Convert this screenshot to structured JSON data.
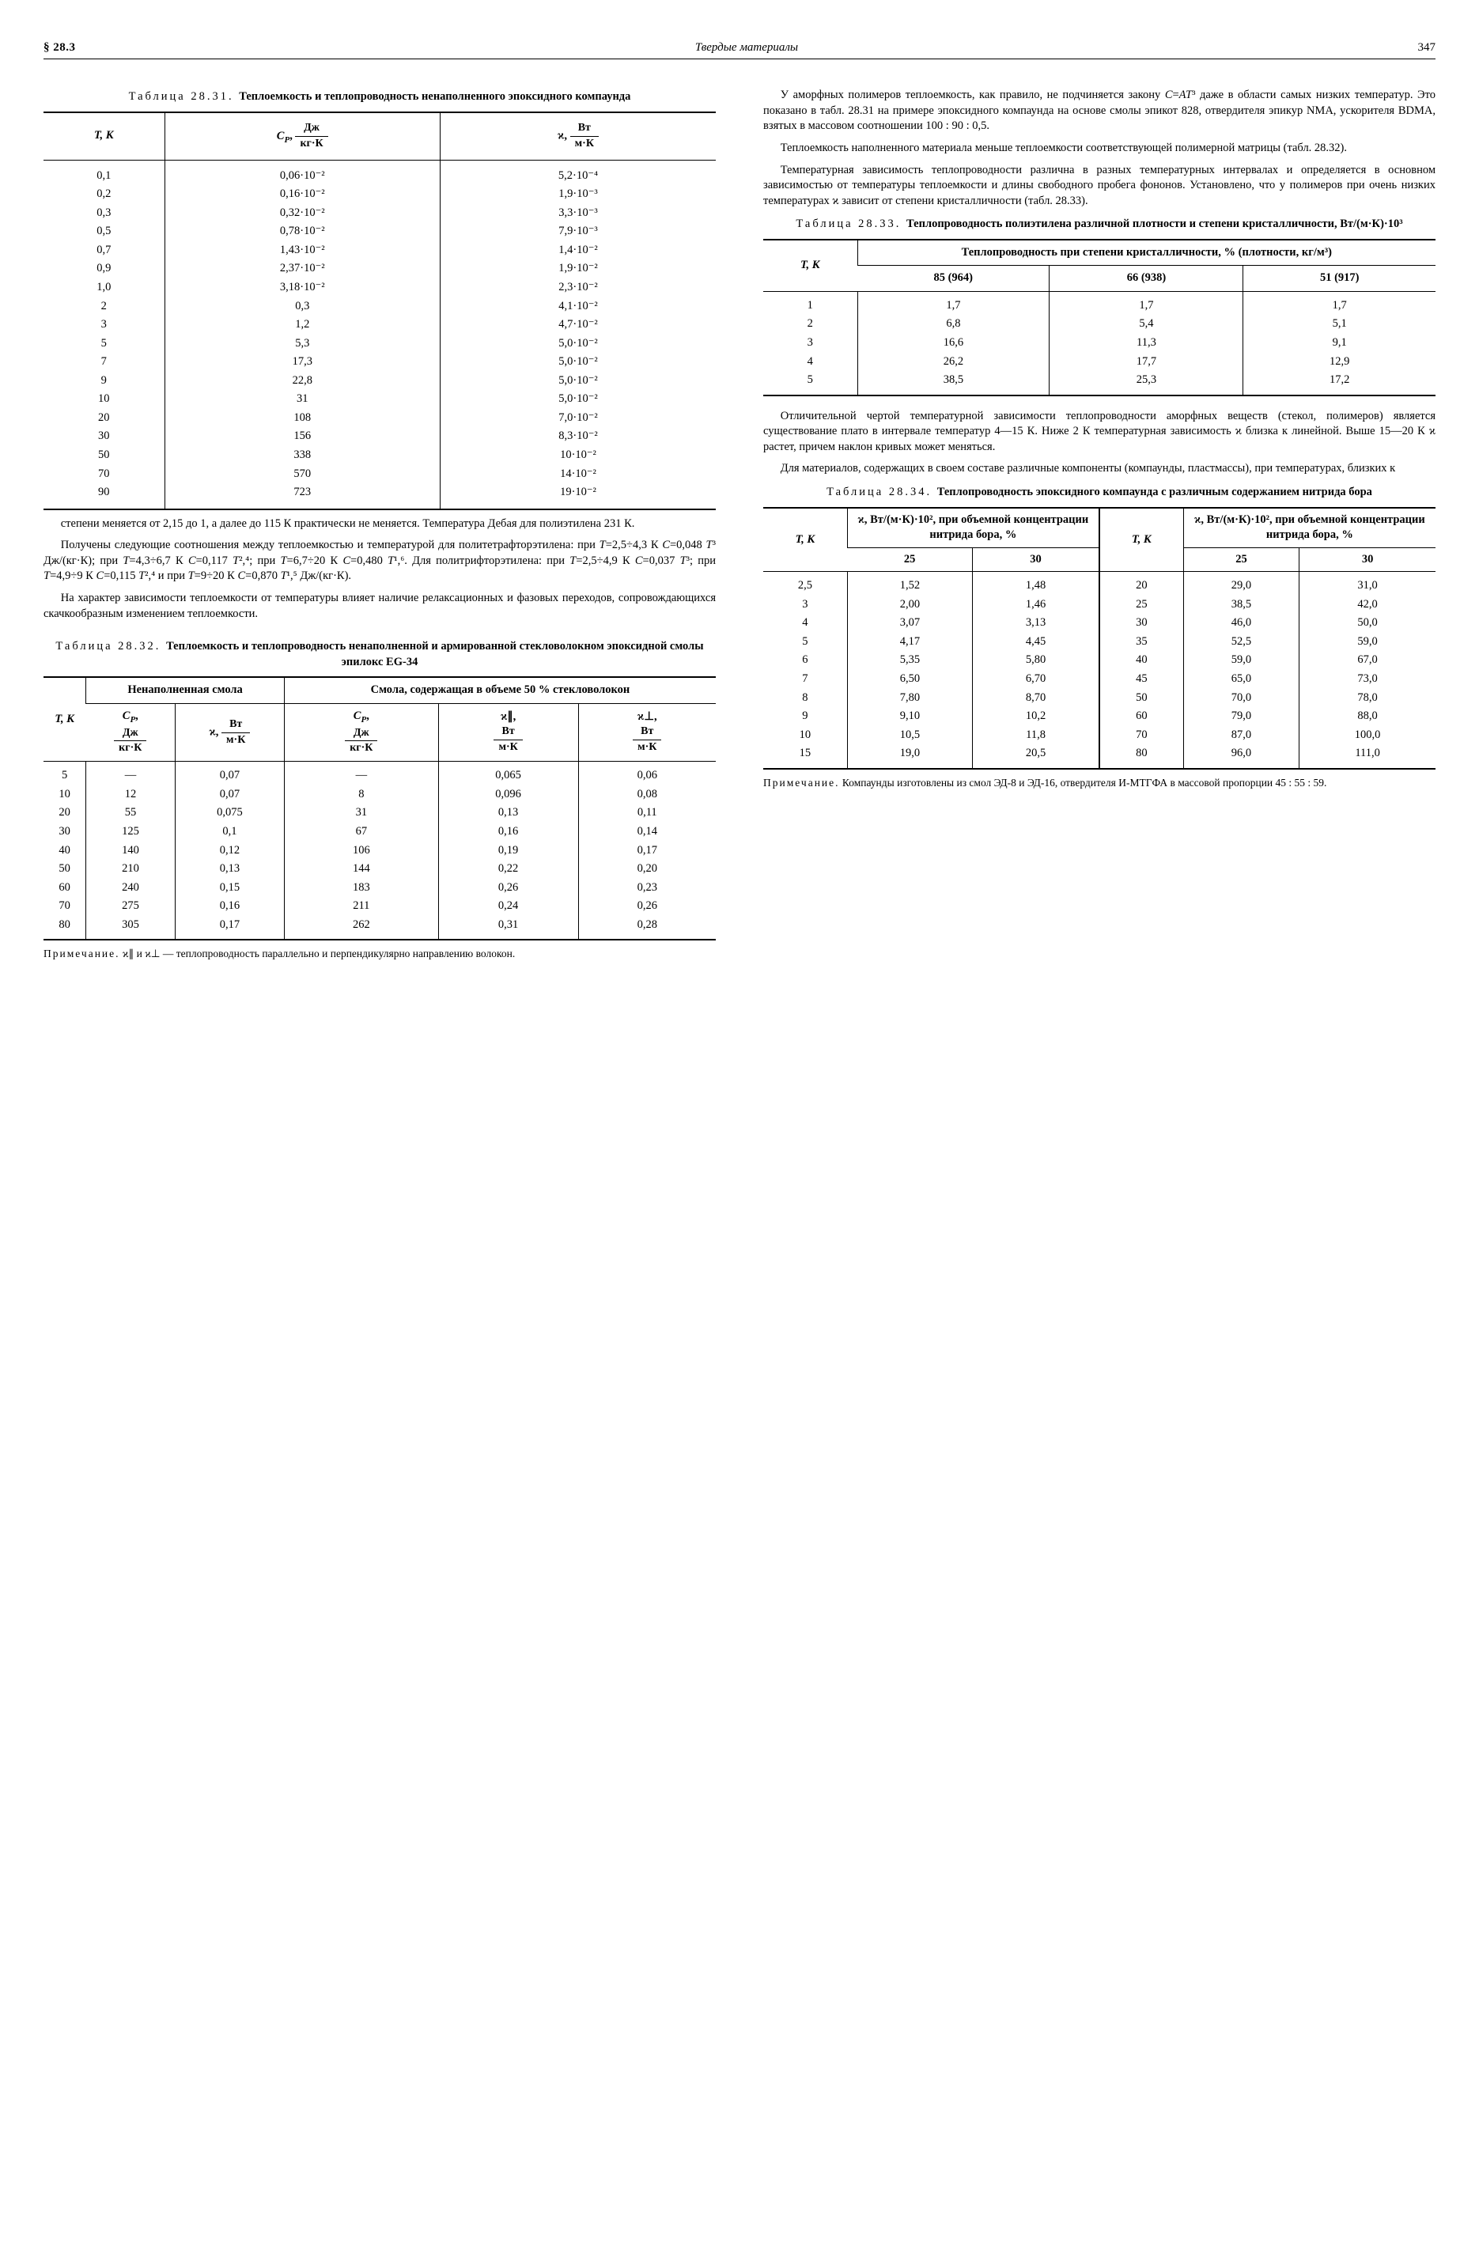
{
  "header": {
    "section": "§ 28.3",
    "chapter": "Твердые материалы",
    "page": "347"
  },
  "t31": {
    "caption_prefix": "Таблица 28.31. ",
    "caption_bold": "Теплоемкость и теплопроводность ненаполненного эпоксидного компаунда",
    "head": {
      "c1": "T, К",
      "c2a": "C",
      "c2b": "P",
      "c2c": ",",
      "c3a": "ϰ,",
      "frac_dz": "Дж",
      "frac_kgk": "кг·К",
      "frac_wt": "Вт",
      "frac_mk": "м·К"
    },
    "rows": [
      [
        "0,1",
        "0,06·10⁻²",
        "5,2·10⁻⁴"
      ],
      [
        "0,2",
        "0,16·10⁻²",
        "1,9·10⁻³"
      ],
      [
        "0,3",
        "0,32·10⁻²",
        "3,3·10⁻³"
      ],
      [
        "0,5",
        "0,78·10⁻²",
        "7,9·10⁻³"
      ],
      [
        "0,7",
        "1,43·10⁻²",
        "1,4·10⁻²"
      ],
      [
        "0,9",
        "2,37·10⁻²",
        "1,9·10⁻²"
      ],
      [
        "1,0",
        "3,18·10⁻²",
        "2,3·10⁻²"
      ],
      [
        "2",
        "0,3",
        "4,1·10⁻²"
      ],
      [
        "3",
        "1,2",
        "4,7·10⁻²"
      ],
      [
        "5",
        "5,3",
        "5,0·10⁻²"
      ],
      [
        "7",
        "17,3",
        "5,0·10⁻²"
      ],
      [
        "9",
        "22,8",
        "5,0·10⁻²"
      ],
      [
        "10",
        "31",
        "5,0·10⁻²"
      ],
      [
        "20",
        "108",
        "7,0·10⁻²"
      ],
      [
        "30",
        "156",
        "8,3·10⁻²"
      ],
      [
        "50",
        "338",
        "10·10⁻²"
      ],
      [
        "70",
        "570",
        "14·10⁻²"
      ],
      [
        "90",
        "723",
        "19·10⁻²"
      ]
    ]
  },
  "left_p1": "степени меняется от 2,15 до 1, а далее до 115 К практически не меняется. Температура Дебая для полиэтилена 231 К.",
  "left_p2_html": "Получены следующие соотношения между теплоемкостью и температурой для политетрафторэтилена: при <i>T</i>=2,5÷4,3 К <i>C</i>=0,048 <i>T</i>³ Дж/(кг·К); при <i>T</i>=4,3÷6,7 К <i>C</i>=0,117 <i>T</i>²,⁴; при <i>T</i>=6,7÷20 К <i>C</i>=0,480 <i>T</i>¹,⁶. Для политрифторэтилена: при <i>T</i>=2,5÷4,9 К <i>C</i>=0,037 <i>T</i>³; при <i>T</i>=4,9÷9 К <i>C</i>=0,115 <i>T</i>²,⁴ и при <i>T</i>=9÷20 К <i>C</i>=0,870 <i>T</i>¹,⁵ Дж/(кг·К).",
  "left_p3": "На характер зависимости теплоемкости от температуры влияет наличие релаксационных и фазовых переходов, сопровождающихся скачкообразным изменением теплоемкости.",
  "t32": {
    "caption_prefix": "Таблица 28.32. ",
    "caption_bold": "Теплоемкость и теплопроводность ненаполненной и армированной стекловолокном эпоксидной смолы эпилокс EG-34",
    "grp1": "Ненаполненная смола",
    "grp2": "Смола, содержащая в объеме 50 % стекловолокон",
    "hT": "T, К",
    "cp_label": "C_P,",
    "cp_unit_num": "Дж",
    "cp_unit_den": "кг·К",
    "k_label": "ϰ,",
    "k_unit_num": "Вт",
    "k_unit_den": "м·К",
    "kpar_label": "ϰ∥,",
    "kperp_label": "ϰ⊥,",
    "rows": [
      [
        "5",
        "—",
        "0,07",
        "—",
        "0,065",
        "0,06"
      ],
      [
        "10",
        "12",
        "0,07",
        "8",
        "0,096",
        "0,08"
      ],
      [
        "20",
        "55",
        "0,075",
        "31",
        "0,13",
        "0,11"
      ],
      [
        "30",
        "125",
        "0,1",
        "67",
        "0,16",
        "0,14"
      ],
      [
        "40",
        "140",
        "0,12",
        "106",
        "0,19",
        "0,17"
      ],
      [
        "50",
        "210",
        "0,13",
        "144",
        "0,22",
        "0,20"
      ],
      [
        "60",
        "240",
        "0,15",
        "183",
        "0,26",
        "0,23"
      ],
      [
        "70",
        "275",
        "0,16",
        "211",
        "0,24",
        "0,26"
      ],
      [
        "80",
        "305",
        "0,17",
        "262",
        "0,31",
        "0,28"
      ]
    ],
    "note_sp": "Примечание.",
    "note_rest": " ϰ∥ и ϰ⊥ — теплопроводность параллельно и перпендикулярно направлению волокон."
  },
  "right_p1_html": "У аморфных полимеров теплоемкость, как правило, не подчиняется закону <i>C</i>=<i>AT</i>³ даже в области самых низких температур. Это показано в табл. 28.31 на примере эпоксидного компаунда на основе смолы эпикот 828, отвердителя эпикур NMA, ускорителя BDMA, взятых в массовом соотношении 100 : 90 : 0,5.",
  "right_p2": "Теплоемкость наполненного материала меньше теплоемкости соответствующей полимерной матрицы (табл. 28.32).",
  "right_p3": "Температурная зависимость теплопроводности различна в разных температурных интервалах и определяется в основном зависимостью от температуры теплоемкости и длины свободного пробега фононов. Установлено, что у полимеров при очень низких температурах ϰ зависит от степени кристалличности (табл. 28.33).",
  "t33": {
    "caption_prefix": "Таблица 28.33. ",
    "caption_bold": "Теплопроводность полиэтилена различной плотности и степени кристалличности, Вт/(м·К)·10³",
    "hT": "T, К",
    "grp": "Теплопроводность при степени кристалличности, % (плотности, кг/м³)",
    "sub": [
      "85 (964)",
      "66 (938)",
      "51 (917)"
    ],
    "rows": [
      [
        "1",
        "1,7",
        "1,7",
        "1,7"
      ],
      [
        "2",
        "6,8",
        "5,4",
        "5,1"
      ],
      [
        "3",
        "16,6",
        "11,3",
        "9,1"
      ],
      [
        "4",
        "26,2",
        "17,7",
        "12,9"
      ],
      [
        "5",
        "38,5",
        "25,3",
        "17,2"
      ]
    ]
  },
  "right_p4": "Отличительной чертой температурной зависимости теплопроводности аморфных веществ (стекол, полимеров) является существование плато в интервале температур 4—15 К. Ниже 2 К температурная зависимость ϰ близка к линейной. Выше 15—20 К ϰ растет, причем наклон кривых может меняться.",
  "right_p5": "Для материалов, содержащих в своем составе различные компоненты (компаунды, пластмассы), при температурах, близких к",
  "t34": {
    "caption_prefix": "Таблица 28.34. ",
    "caption_bold": "Теплопроводность эпоксидного компаунда с различным содержанием нитрида бора",
    "hT": "T, К",
    "grp": "ϰ, Вт/(м·К)·10², при объемной концентрации нитрида бора, %",
    "s25": "25",
    "s30": "30",
    "rows_left": [
      [
        "2,5",
        "1,52",
        "1,48"
      ],
      [
        "3",
        "2,00",
        "1,46"
      ],
      [
        "4",
        "3,07",
        "3,13"
      ],
      [
        "5",
        "4,17",
        "4,45"
      ],
      [
        "6",
        "5,35",
        "5,80"
      ],
      [
        "7",
        "6,50",
        "6,70"
      ],
      [
        "8",
        "7,80",
        "8,70"
      ],
      [
        "9",
        "9,10",
        "10,2"
      ],
      [
        "10",
        "10,5",
        "11,8"
      ],
      [
        "15",
        "19,0",
        "20,5"
      ]
    ],
    "rows_right": [
      [
        "20",
        "29,0",
        "31,0"
      ],
      [
        "25",
        "38,5",
        "42,0"
      ],
      [
        "30",
        "46,0",
        "50,0"
      ],
      [
        "35",
        "52,5",
        "59,0"
      ],
      [
        "40",
        "59,0",
        "67,0"
      ],
      [
        "45",
        "65,0",
        "73,0"
      ],
      [
        "50",
        "70,0",
        "78,0"
      ],
      [
        "60",
        "79,0",
        "88,0"
      ],
      [
        "70",
        "87,0",
        "100,0"
      ],
      [
        "80",
        "96,0",
        "111,0"
      ]
    ],
    "note_sp": "Примечание.",
    "note_rest": " Компаунды изготовлены из смол ЭД-8 и ЭД-16, отвердителя И-МТГФА в массовой пропорции 45 : 55 : 59."
  }
}
